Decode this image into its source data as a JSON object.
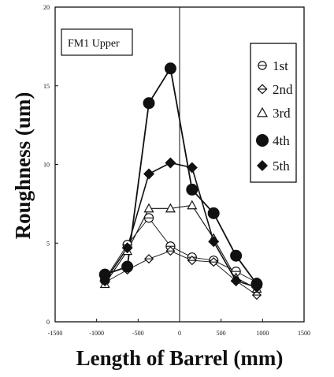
{
  "chart_data": {
    "type": "line",
    "label_box": "FM1 Upper",
    "xlabel": "Length of Barrel (mm)",
    "ylabel": "Roughness (um)",
    "xlim": [
      -1500,
      1500
    ],
    "ylim": [
      0,
      20
    ],
    "x_ticks": [
      -1500,
      -1000,
      -500,
      0,
      500,
      1000,
      1500
    ],
    "y_ticks": [
      0,
      5,
      10,
      15,
      20
    ],
    "grid": false,
    "legend_position": "top-right",
    "center_line_x": 0,
    "x": [
      -900,
      -630,
      -370,
      -110,
      150,
      410,
      680,
      930
    ],
    "series": [
      {
        "name": "1st",
        "marker": "circle-bar-open",
        "values": [
          2.7,
          4.9,
          6.6,
          4.8,
          4.1,
          3.9,
          3.2,
          2.5
        ]
      },
      {
        "name": "2nd",
        "marker": "diamond-bar-open",
        "values": [
          2.5,
          3.3,
          4.0,
          4.5,
          3.9,
          3.8,
          2.6,
          1.7
        ]
      },
      {
        "name": "3rd",
        "marker": "triangle-open",
        "values": [
          2.4,
          4.5,
          7.2,
          7.2,
          7.4,
          5.3,
          2.8,
          2.1
        ]
      },
      {
        "name": "4th",
        "marker": "circle-filled",
        "values": [
          3.0,
          3.5,
          13.9,
          16.1,
          8.4,
          6.9,
          4.2,
          2.4
        ]
      },
      {
        "name": "5th",
        "marker": "diamond-filled",
        "values": [
          2.6,
          4.7,
          9.4,
          10.1,
          9.8,
          5.1,
          2.6,
          2.2
        ]
      }
    ]
  }
}
